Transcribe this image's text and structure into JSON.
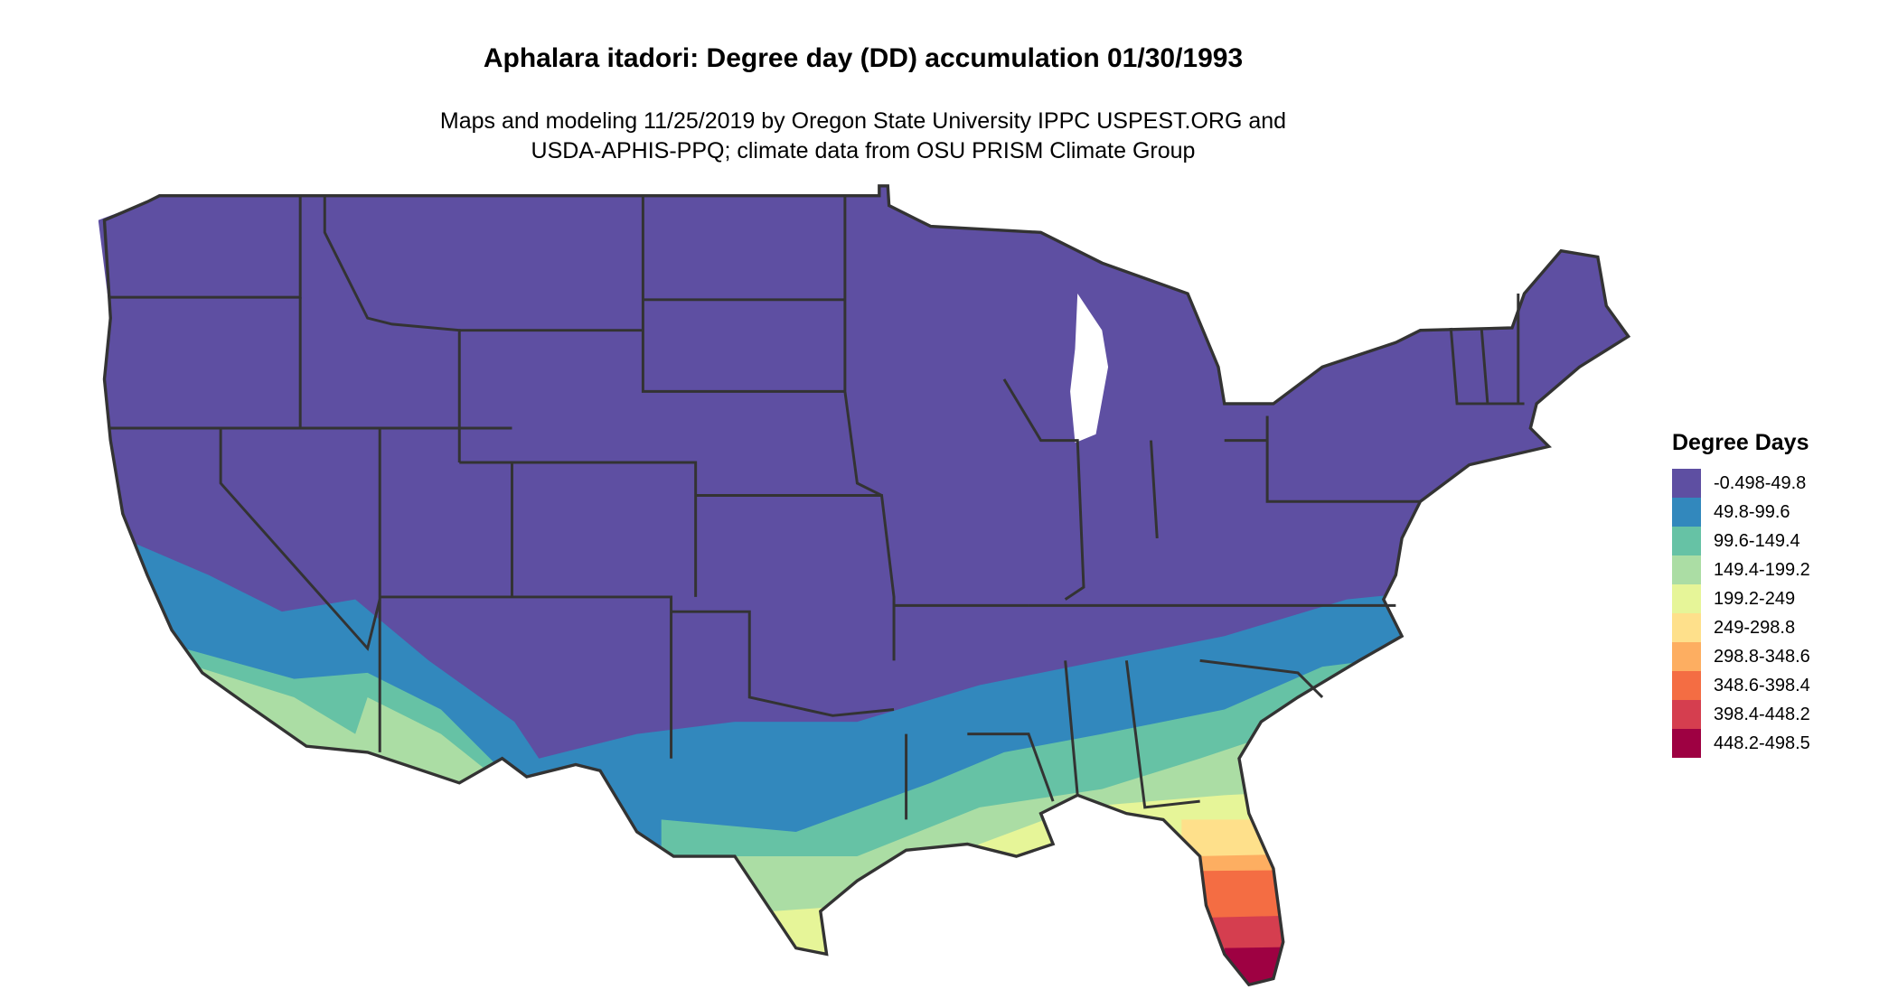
{
  "title": "Aphalara itadori: Degree day (DD) accumulation 01/30/1993",
  "subtitle_line1": "Maps and modeling 11/25/2019 by Oregon State University IPPC USPEST.ORG and",
  "subtitle_line2": "USDA-APHIS-PPQ; climate data from OSU PRISM Climate Group",
  "legend": {
    "title": "Degree Days",
    "items": [
      {
        "label": "-0.498-49.8",
        "color": "#5E4FA2"
      },
      {
        "label": "49.8-99.6",
        "color": "#3288BD"
      },
      {
        "label": "99.6-149.4",
        "color": "#66C2A5"
      },
      {
        "label": "149.4-199.2",
        "color": "#ABDDA4"
      },
      {
        "label": "199.2-249",
        "color": "#E6F598"
      },
      {
        "label": "249-298.8",
        "color": "#FEE08B"
      },
      {
        "label": "298.8-348.6",
        "color": "#FDAE61"
      },
      {
        "label": "348.6-398.4",
        "color": "#F46D43"
      },
      {
        "label": "398.4-448.2",
        "color": "#D53E4F"
      },
      {
        "label": "448.2-498.5",
        "color": "#9E0142"
      }
    ]
  },
  "map": {
    "region": "Contiguous United States",
    "border_color": "#333333"
  }
}
